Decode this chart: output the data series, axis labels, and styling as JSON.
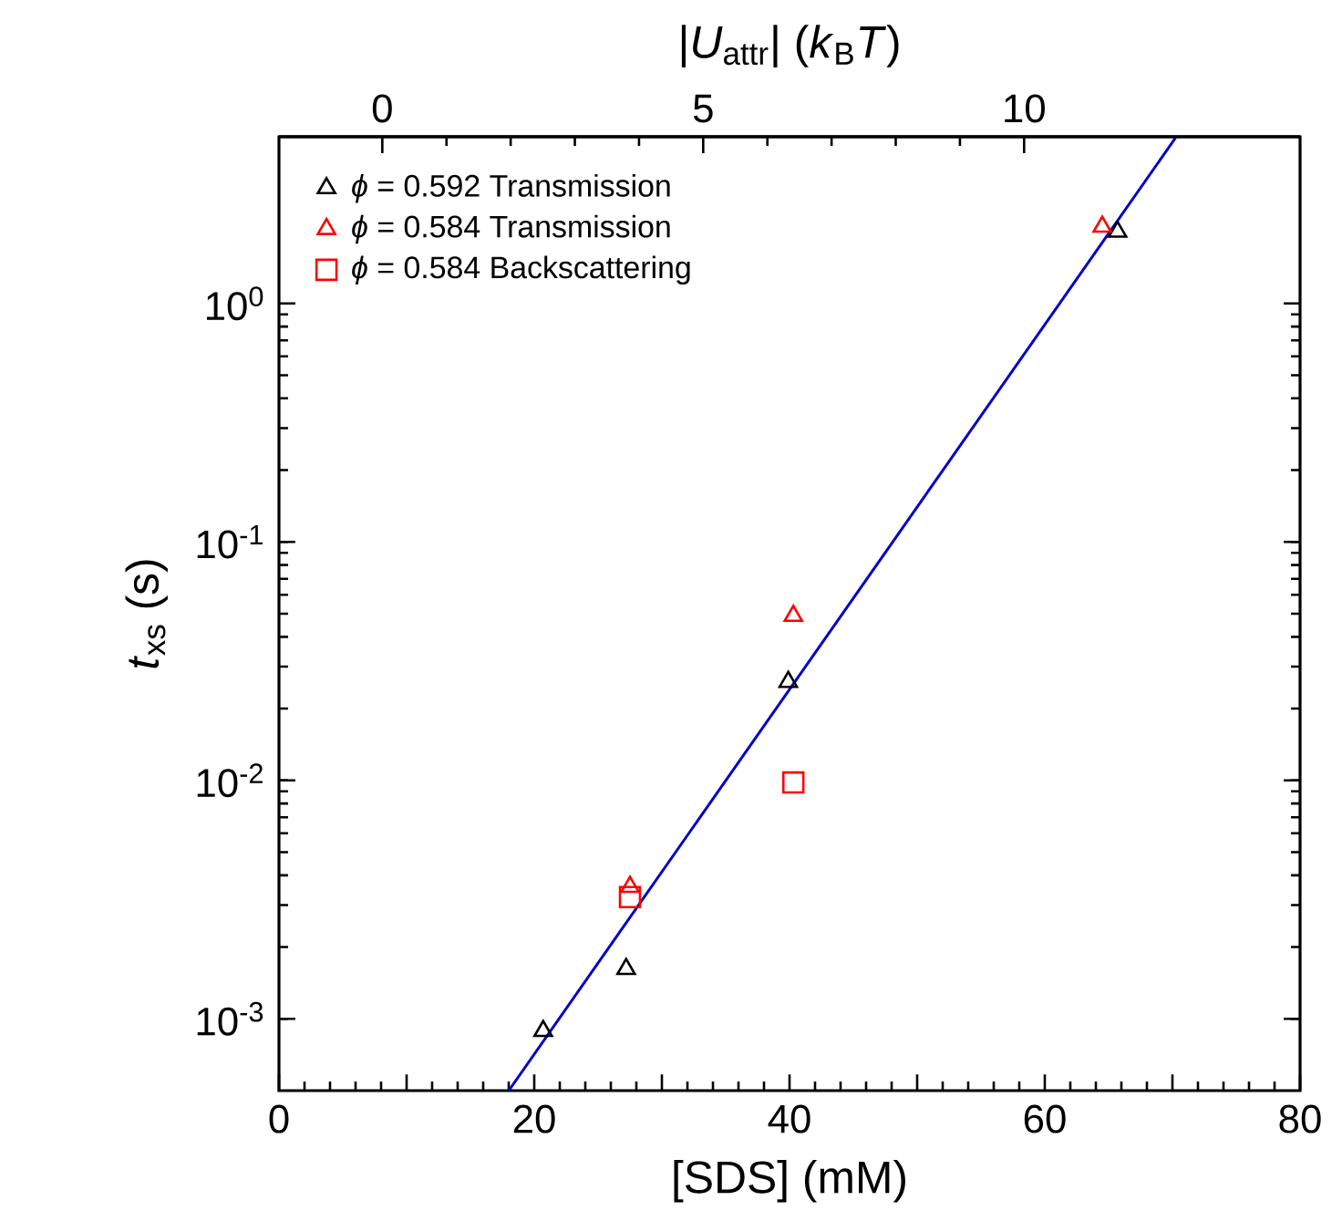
{
  "chart_data": {
    "type": "scatter",
    "xlabel": "[SDS] (mM)",
    "ylabel": "*t*$_{xs}$ (s)",
    "x2label": "|*U*$_{attr}$| (*k*$_{B}$*T*)",
    "log": "y",
    "legend": "top left",
    "grid": false,
    "xlim": [
      0,
      80
    ],
    "xticks": [
      0,
      {
        "value": 10,
        "label": null
      },
      20,
      {
        "value": 30,
        "label": null
      },
      40,
      {
        "value": 50,
        "label": null
      },
      60,
      {
        "value": 70,
        "label": null
      },
      80
    ],
    "x2lim": [
      -1.61,
      14.3
    ],
    "x2ticks": [
      0,
      5,
      10
    ],
    "ylim": [
      0.0005,
      5
    ],
    "yticks": [
      {
        "value": 0.001,
        "label": "10$^{-3}$"
      },
      {
        "value": 0.01,
        "label": "10$^{-2}$"
      },
      {
        "value": 0.1,
        "label": "10$^{-1}$"
      },
      {
        "value": 1,
        "label": "10$^{0}$"
      }
    ],
    "series": [
      {
        "name": "*ϕ* = 0.592 Transmission",
        "color": "#000000",
        "marker": "triangle",
        "x": [
          20.7,
          27.2,
          39.9,
          65.7
        ],
        "values": [
          0.00089,
          0.00162,
          0.0259,
          2.0
        ]
      },
      {
        "name": "*ϕ* = 0.584 Transmission",
        "color": "#ff0000",
        "marker": "triangle",
        "x": [
          27.5,
          40.3,
          64.5
        ],
        "values": [
          0.00358,
          0.049,
          2.1
        ]
      },
      {
        "name": "*ϕ* = 0.584 Backscattering",
        "color": "#ff0000",
        "marker": "square",
        "x": [
          27.5,
          40.3
        ],
        "values": [
          0.00324,
          0.0098
        ]
      },
      {
        "type": "line",
        "color": "#0000cc",
        "line_style": "solid",
        "x": [
          18.0,
          70.3
        ],
        "values": [
          0.0005,
          5
        ]
      }
    ]
  }
}
